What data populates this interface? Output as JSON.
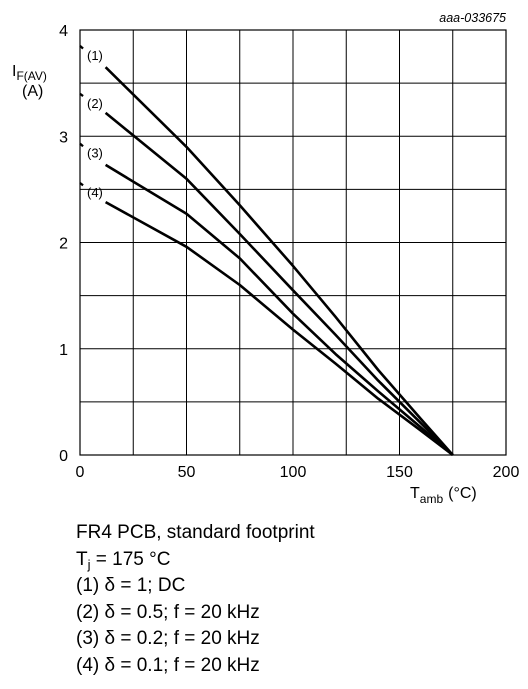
{
  "chart_data": {
    "type": "line",
    "figure_id": "aaa-033675",
    "ylabel_main": "I",
    "ylabel_sub": "F(AV)",
    "ylabel_unit": "(A)",
    "xlabel_main": "T",
    "xlabel_sub": "amb",
    "xlabel_unit": "(°C)",
    "xlim": [
      0,
      200
    ],
    "ylim": [
      0,
      4
    ],
    "xticks": [
      0,
      50,
      100,
      150,
      200
    ],
    "yticks": [
      0,
      1,
      2,
      3,
      4
    ],
    "x_grid_step": 25,
    "y_grid_step": 0.5,
    "grid": true,
    "series": [
      {
        "name": "(1)",
        "points": [
          [
            0,
            3.85
          ],
          [
            12,
            3.65
          ],
          [
            50,
            2.9
          ],
          [
            75,
            2.35
          ],
          [
            100,
            1.78
          ],
          [
            120,
            1.3
          ],
          [
            140,
            0.8
          ],
          [
            160,
            0.34
          ],
          [
            175,
            0
          ]
        ]
      },
      {
        "name": "(2)",
        "points": [
          [
            0,
            3.4
          ],
          [
            12,
            3.22
          ],
          [
            50,
            2.6
          ],
          [
            75,
            2.08
          ],
          [
            100,
            1.55
          ],
          [
            120,
            1.13
          ],
          [
            140,
            0.7
          ],
          [
            160,
            0.3
          ],
          [
            175,
            0
          ]
        ]
      },
      {
        "name": "(3)",
        "points": [
          [
            0,
            2.93
          ],
          [
            12,
            2.73
          ],
          [
            50,
            2.27
          ],
          [
            75,
            1.85
          ],
          [
            100,
            1.33
          ],
          [
            120,
            0.95
          ],
          [
            140,
            0.6
          ],
          [
            160,
            0.26
          ],
          [
            175,
            0
          ]
        ]
      },
      {
        "name": "(4)",
        "points": [
          [
            0,
            2.56
          ],
          [
            12,
            2.38
          ],
          [
            50,
            1.96
          ],
          [
            75,
            1.6
          ],
          [
            100,
            1.18
          ],
          [
            120,
            0.86
          ],
          [
            140,
            0.53
          ],
          [
            160,
            0.23
          ],
          [
            175,
            0
          ]
        ]
      }
    ]
  },
  "notes": {
    "line1": "FR4 PCB, standard footprint",
    "tj_main": "T",
    "tj_sub": "j",
    "tj_rest": " = 175 °C",
    "conditions": [
      "(1) δ = 1; DC",
      "(2) δ = 0.5; f = 20 kHz",
      "(3) δ = 0.2; f = 20 kHz",
      "(4) δ = 0.1; f = 20 kHz"
    ]
  }
}
